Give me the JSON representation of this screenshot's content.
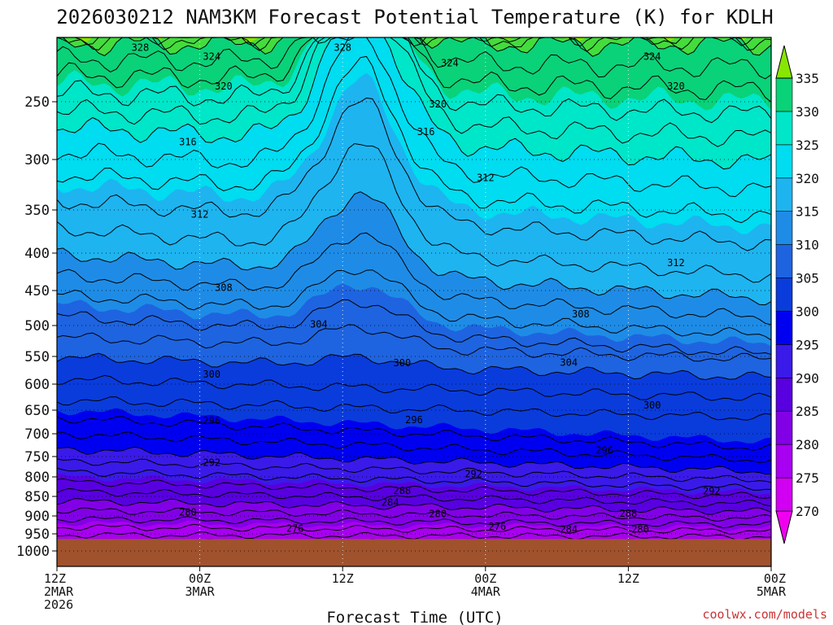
{
  "chart_data": {
    "type": "heatmap",
    "title": "2026030212 NAM3KM Forecast Potential Temperature (K) for KDLH",
    "xlabel": "Forecast Time (UTC)",
    "ylabel": "",
    "credit": "coolwx.com/models",
    "x_ticks": [
      {
        "hour": 0,
        "lines": [
          "12Z",
          "2MAR",
          "2026"
        ]
      },
      {
        "hour": 12,
        "lines": [
          "00Z",
          "3MAR"
        ]
      },
      {
        "hour": 24,
        "lines": [
          "12Z"
        ]
      },
      {
        "hour": 36,
        "lines": [
          "00Z",
          "4MAR"
        ]
      },
      {
        "hour": 48,
        "lines": [
          "12Z"
        ]
      },
      {
        "hour": 60,
        "lines": [
          "00Z",
          "5MAR"
        ]
      }
    ],
    "x_range_hours": [
      0,
      60
    ],
    "y_ticks": [
      250,
      300,
      350,
      400,
      450,
      500,
      550,
      600,
      650,
      700,
      750,
      800,
      850,
      900,
      950,
      1000
    ],
    "y_range_hPa": [
      200,
      1050
    ],
    "ground_level_hPa": 965,
    "colorbar": {
      "levels": [
        270,
        275,
        280,
        285,
        290,
        295,
        300,
        305,
        310,
        315,
        320,
        325,
        330,
        335
      ],
      "colors": [
        "#f000f0",
        "#d200f2",
        "#a800f0",
        "#8200e6",
        "#5800e0",
        "#3a1ae8",
        "#0000f0",
        "#0a3cdc",
        "#1e64e0",
        "#1e8ce6",
        "#1eb4f0",
        "#00dcf0",
        "#00e6c8",
        "#0ad278",
        "#44dc3c",
        "#88e600"
      ]
    },
    "ground_color": "#a0522d",
    "contour_interval": 2,
    "contour_labels": [
      {
        "value": "328",
        "hour": 7.0,
        "hPa": 208
      },
      {
        "value": "328",
        "hour": 24.0,
        "hPa": 208
      },
      {
        "value": "324",
        "hour": 13.0,
        "hPa": 215
      },
      {
        "value": "324",
        "hour": 33.0,
        "hPa": 220
      },
      {
        "value": "324",
        "hour": 50.0,
        "hPa": 215
      },
      {
        "value": "320",
        "hour": 14.0,
        "hPa": 238
      },
      {
        "value": "320",
        "hour": 32.0,
        "hPa": 252
      },
      {
        "value": "320",
        "hour": 52.0,
        "hPa": 238
      },
      {
        "value": "316",
        "hour": 11.0,
        "hPa": 285
      },
      {
        "value": "316",
        "hour": 31.0,
        "hPa": 276
      },
      {
        "value": "312",
        "hour": 12.0,
        "hPa": 355
      },
      {
        "value": "312",
        "hour": 36.0,
        "hPa": 318
      },
      {
        "value": "312",
        "hour": 52.0,
        "hPa": 413
      },
      {
        "value": "308",
        "hour": 14.0,
        "hPa": 446
      },
      {
        "value": "308",
        "hour": 44.0,
        "hPa": 484
      },
      {
        "value": "304",
        "hour": 22.0,
        "hPa": 498
      },
      {
        "value": "304",
        "hour": 43.0,
        "hPa": 561
      },
      {
        "value": "300",
        "hour": 13.0,
        "hPa": 582
      },
      {
        "value": "300",
        "hour": 29.0,
        "hPa": 562
      },
      {
        "value": "300",
        "hour": 50.0,
        "hPa": 641
      },
      {
        "value": "296",
        "hour": 13.0,
        "hPa": 672
      },
      {
        "value": "296",
        "hour": 30.0,
        "hPa": 671
      },
      {
        "value": "296",
        "hour": 46.0,
        "hPa": 737
      },
      {
        "value": "292",
        "hour": 13.0,
        "hPa": 765
      },
      {
        "value": "292",
        "hour": 35.0,
        "hPa": 793
      },
      {
        "value": "292",
        "hour": 55.0,
        "hPa": 836
      },
      {
        "value": "288",
        "hour": 29.0,
        "hPa": 835
      },
      {
        "value": "288",
        "hour": 48.0,
        "hPa": 894
      },
      {
        "value": "284",
        "hour": 28.0,
        "hPa": 866
      },
      {
        "value": "284",
        "hour": 43.0,
        "hPa": 937
      },
      {
        "value": "280",
        "hour": 11.0,
        "hPa": 891
      },
      {
        "value": "280",
        "hour": 32.0,
        "hPa": 895
      },
      {
        "value": "280",
        "hour": 49.0,
        "hPa": 938
      },
      {
        "value": "276",
        "hour": 20.0,
        "hPa": 935
      },
      {
        "value": "276",
        "hour": 37.0,
        "hPa": 930
      }
    ]
  }
}
